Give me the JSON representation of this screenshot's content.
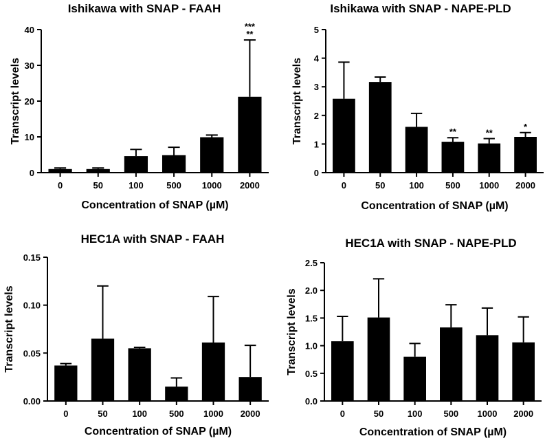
{
  "figure": {
    "bar_color": "#000000",
    "background": "#ffffff"
  },
  "chart_data": [
    {
      "type": "bar",
      "title": "Ishikawa with SNAP - FAAH",
      "xlabel": "Concentration of SNAP (µM)",
      "ylabel": "Transcript levels",
      "categories": [
        "0",
        "50",
        "100",
        "500",
        "1000",
        "2000"
      ],
      "values": [
        1.0,
        1.0,
        4.6,
        4.9,
        9.9,
        21.2
      ],
      "errors": [
        0.3,
        0.3,
        1.9,
        2.2,
        0.6,
        15.9
      ],
      "annotations": [
        "",
        "",
        "",
        "",
        "",
        "***\n**"
      ],
      "ylim": [
        0,
        40
      ],
      "yticks": [
        "0",
        "10",
        "20",
        "30",
        "40"
      ],
      "grid": false
    },
    {
      "type": "bar",
      "title": "Ishikawa with SNAP - NAPE-PLD",
      "xlabel": "Concentration of SNAP (µM)",
      "ylabel": "Transcript levels",
      "categories": [
        "0",
        "50",
        "100",
        "500",
        "1000",
        "2000"
      ],
      "values": [
        2.58,
        3.17,
        1.6,
        1.08,
        1.02,
        1.25
      ],
      "errors": [
        1.28,
        0.17,
        0.47,
        0.14,
        0.17,
        0.15
      ],
      "annotations": [
        "",
        "",
        "",
        "**",
        "**",
        "*"
      ],
      "ylim": [
        0,
        5
      ],
      "yticks": [
        "0",
        "1",
        "2",
        "3",
        "4",
        "5"
      ],
      "grid": false
    },
    {
      "type": "bar",
      "title": "HEC1A with SNAP - FAAH",
      "xlabel": "Concentration of SNAP (µM)",
      "ylabel": "Transcript levels",
      "categories": [
        "0",
        "50",
        "100",
        "500",
        "1000",
        "2000"
      ],
      "values": [
        0.037,
        0.065,
        0.055,
        0.015,
        0.061,
        0.025
      ],
      "errors": [
        0.002,
        0.055,
        0.001,
        0.009,
        0.048,
        0.033
      ],
      "annotations": [
        "",
        "",
        "",
        "",
        "",
        ""
      ],
      "ylim": [
        0,
        0.15
      ],
      "yticks": [
        "0.00",
        "0.05",
        "0.10",
        "0.15"
      ],
      "grid": false
    },
    {
      "type": "bar",
      "title": "HEC1A with SNAP - NAPE-PLD",
      "xlabel": "Concentration of SNAP (µM)",
      "ylabel": "Transcript levels",
      "categories": [
        "0",
        "50",
        "100",
        "500",
        "1000",
        "2000"
      ],
      "values": [
        1.08,
        1.51,
        0.8,
        1.33,
        1.19,
        1.06
      ],
      "errors": [
        0.45,
        0.7,
        0.24,
        0.41,
        0.49,
        0.46
      ],
      "annotations": [
        "",
        "",
        "",
        "",
        "",
        ""
      ],
      "ylim": [
        0,
        2.5
      ],
      "yticks": [
        "0.0",
        "0.5",
        "1.0",
        "1.5",
        "2.0",
        "2.5"
      ],
      "grid": false
    }
  ]
}
